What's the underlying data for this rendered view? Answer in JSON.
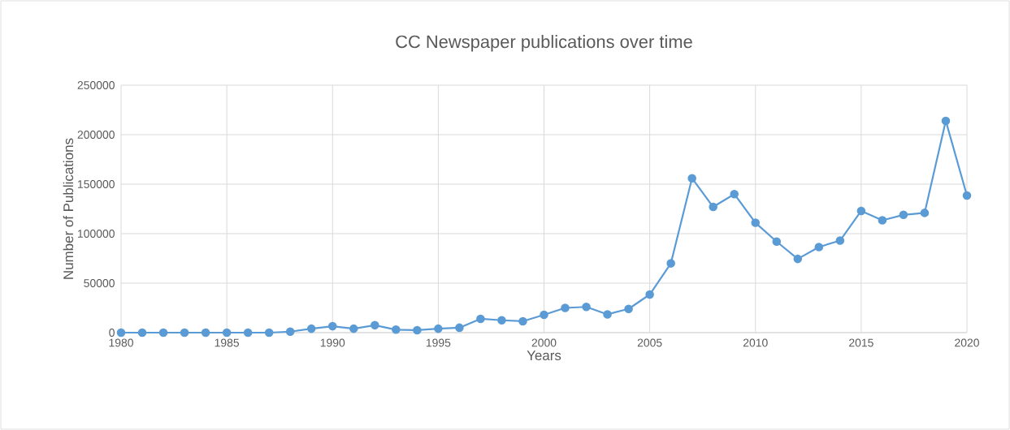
{
  "chart_data": {
    "type": "line",
    "title": "CC Newspaper publications over time",
    "xlabel": "Years",
    "ylabel": "Number of Publications",
    "x": [
      1980,
      1981,
      1982,
      1983,
      1984,
      1985,
      1986,
      1987,
      1988,
      1989,
      1990,
      1991,
      1992,
      1993,
      1994,
      1995,
      1996,
      1997,
      1998,
      1999,
      2000,
      2001,
      2002,
      2003,
      2004,
      2005,
      2006,
      2007,
      2008,
      2009,
      2010,
      2011,
      2012,
      2013,
      2014,
      2015,
      2016,
      2017,
      2018,
      2019,
      2020
    ],
    "series": [
      {
        "color": "#5b9bd5",
        "values": [
          0,
          0,
          0,
          0,
          0,
          0,
          0,
          0,
          1000,
          4000,
          6500,
          4000,
          7500,
          3000,
          2500,
          4000,
          5000,
          14000,
          12500,
          11500,
          18000,
          25000,
          26000,
          18500,
          24000,
          38500,
          70000,
          156000,
          127000,
          140000,
          111000,
          92000,
          74500,
          86500,
          93000,
          123000,
          113500,
          119000,
          121000,
          214000,
          138500
        ]
      }
    ],
    "xlim": [
      1980,
      2020
    ],
    "xticks": [
      1980,
      1985,
      1990,
      1995,
      2000,
      2005,
      2010,
      2015,
      2020
    ],
    "ylim": [
      0,
      250000
    ],
    "yticks": [
      0,
      50000,
      100000,
      150000,
      200000,
      250000
    ],
    "grid": true,
    "marker": "circle",
    "line_style": "solid"
  }
}
